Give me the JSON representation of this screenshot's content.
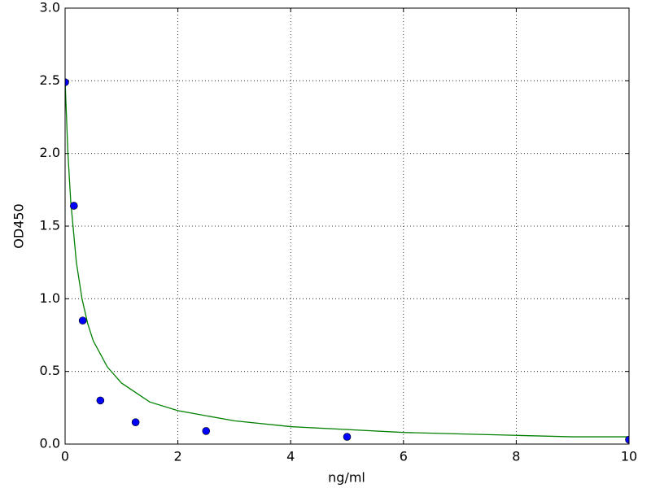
{
  "chart_data": {
    "type": "scatter",
    "xlabel": "ng/ml",
    "ylabel": "OD450",
    "xlim": [
      0,
      10
    ],
    "ylim": [
      0,
      3
    ],
    "xticks": [
      0,
      2,
      4,
      6,
      8,
      10
    ],
    "yticks": [
      {
        "value": 0,
        "label": "0.0"
      },
      {
        "value": 0.5,
        "label": "0.5"
      },
      {
        "value": 1,
        "label": "1.0"
      },
      {
        "value": 1.5,
        "label": "1.5"
      },
      {
        "value": 2,
        "label": "2.0"
      },
      {
        "value": 2.5,
        "label": "2.5"
      },
      {
        "value": 3,
        "label": "3.0"
      }
    ],
    "grid": true,
    "series": [
      {
        "style": "markers",
        "color": "#0000ff",
        "x": [
          0,
          0.156,
          0.3125,
          0.625,
          1.25,
          2.5,
          5,
          10
        ],
        "values": [
          2.49,
          1.64,
          0.85,
          0.3,
          0.15,
          0.09,
          0.05,
          0.03
        ]
      },
      {
        "style": "line",
        "color": "#008000",
        "x": [
          0,
          0.05,
          0.1,
          0.2,
          0.3,
          0.4,
          0.5,
          0.75,
          1,
          1.5,
          2,
          3,
          4,
          5,
          6,
          7,
          8,
          9,
          10
        ],
        "values": [
          2.5,
          2.0,
          1.67,
          1.25,
          1.0,
          0.83,
          0.71,
          0.53,
          0.42,
          0.29,
          0.23,
          0.16,
          0.12,
          0.1,
          0.08,
          0.07,
          0.06,
          0.05,
          0.05
        ]
      }
    ]
  }
}
